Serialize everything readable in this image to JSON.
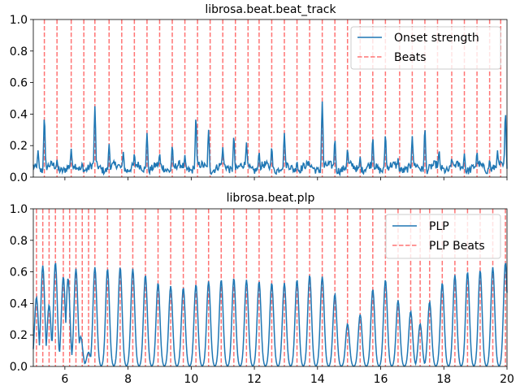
{
  "colors": {
    "signal": "#1f77b4",
    "beat": "#ff0000"
  },
  "chart_data": [
    {
      "type": "line",
      "title": "librosa.beat.beat_track",
      "xlim": [
        5,
        20
      ],
      "ylim": [
        0,
        1.0
      ],
      "yticks": [
        "0.0",
        "0.2",
        "0.4",
        "0.6",
        "0.8",
        "1.0"
      ],
      "xticks": [],
      "legend_position": "top-right",
      "series": [
        {
          "name": "Onset strength",
          "baseline": 0.06,
          "noise": 0.025,
          "peaks": [
            [
              5.15,
              0.17
            ],
            [
              5.35,
              0.38
            ],
            [
              5.75,
              0.11
            ],
            [
              6.2,
              0.18
            ],
            [
              6.55,
              0.09
            ],
            [
              6.95,
              0.45
            ],
            [
              7.4,
              0.21
            ],
            [
              7.85,
              0.16
            ],
            [
              8.2,
              0.15
            ],
            [
              8.6,
              0.28
            ],
            [
              9.0,
              0.15
            ],
            [
              9.4,
              0.2
            ],
            [
              9.8,
              0.14
            ],
            [
              10.15,
              0.38
            ],
            [
              10.55,
              0.3
            ],
            [
              11.0,
              0.19
            ],
            [
              11.35,
              0.26
            ],
            [
              11.75,
              0.22
            ],
            [
              12.15,
              0.16
            ],
            [
              12.55,
              0.19
            ],
            [
              12.95,
              0.28
            ],
            [
              13.35,
              0.1
            ],
            [
              13.75,
              0.08
            ],
            [
              14.15,
              0.48
            ],
            [
              14.55,
              0.24
            ],
            [
              14.95,
              0.18
            ],
            [
              15.35,
              0.13
            ],
            [
              15.75,
              0.25
            ],
            [
              16.15,
              0.27
            ],
            [
              16.55,
              0.12
            ],
            [
              17.0,
              0.26
            ],
            [
              17.4,
              0.31
            ],
            [
              17.85,
              0.17
            ],
            [
              18.25,
              0.12
            ],
            [
              18.65,
              0.15
            ],
            [
              19.05,
              0.16
            ],
            [
              19.45,
              0.11
            ],
            [
              19.7,
              0.17
            ],
            [
              19.95,
              0.41
            ]
          ]
        }
      ],
      "beat_legend": "Beats",
      "beats": [
        5.35,
        5.75,
        6.2,
        6.6,
        6.95,
        7.4,
        7.8,
        8.2,
        8.6,
        9.0,
        9.4,
        9.8,
        10.2,
        10.6,
        11.0,
        11.4,
        11.8,
        12.15,
        12.55,
        12.95,
        13.35,
        13.75,
        14.15,
        14.55,
        14.95,
        15.35,
        15.75,
        16.15,
        16.6,
        17.0,
        17.4,
        17.8,
        18.25,
        18.65,
        19.05,
        19.45,
        19.8
      ]
    },
    {
      "type": "line",
      "title": "librosa.beat.plp",
      "xlim": [
        5,
        20
      ],
      "ylim": [
        0,
        1.0
      ],
      "yticks": [
        "0.0",
        "0.2",
        "0.4",
        "0.6",
        "0.8",
        "1.0"
      ],
      "xticks": [
        "6",
        "8",
        "10",
        "12",
        "14",
        "16",
        "18",
        "20"
      ],
      "legend_position": "top-right",
      "series": [
        {
          "name": "PLP",
          "peaks": [
            [
              5.1,
              0.44
            ],
            [
              5.3,
              0.64
            ],
            [
              5.5,
              0.39
            ],
            [
              5.7,
              0.66
            ],
            [
              5.95,
              0.57
            ],
            [
              6.1,
              0.56
            ],
            [
              6.35,
              0.62
            ],
            [
              6.5,
              0.19
            ],
            [
              6.75,
              0.09
            ],
            [
              6.95,
              0.63
            ],
            [
              7.35,
              0.62
            ],
            [
              7.75,
              0.63
            ],
            [
              8.15,
              0.62
            ],
            [
              8.55,
              0.58
            ],
            [
              8.95,
              0.53
            ],
            [
              9.35,
              0.51
            ],
            [
              9.75,
              0.5
            ],
            [
              10.15,
              0.52
            ],
            [
              10.55,
              0.54
            ],
            [
              10.95,
              0.55
            ],
            [
              11.35,
              0.56
            ],
            [
              11.75,
              0.55
            ],
            [
              12.15,
              0.54
            ],
            [
              12.55,
              0.53
            ],
            [
              12.95,
              0.53
            ],
            [
              13.35,
              0.55
            ],
            [
              13.75,
              0.58
            ],
            [
              14.15,
              0.57
            ],
            [
              14.55,
              0.46
            ],
            [
              14.95,
              0.27
            ],
            [
              15.35,
              0.33
            ],
            [
              15.75,
              0.49
            ],
            [
              16.15,
              0.55
            ],
            [
              16.55,
              0.42
            ],
            [
              16.95,
              0.35
            ],
            [
              17.25,
              0.27
            ],
            [
              17.55,
              0.41
            ],
            [
              17.95,
              0.53
            ],
            [
              18.35,
              0.58
            ],
            [
              18.75,
              0.6
            ],
            [
              19.15,
              0.61
            ],
            [
              19.55,
              0.63
            ],
            [
              19.95,
              0.66
            ]
          ],
          "width": 0.085
        }
      ],
      "beat_legend": "PLP Beats",
      "beats": [
        5.1,
        5.3,
        5.5,
        5.7,
        5.95,
        6.15,
        6.35,
        6.55,
        6.75,
        6.95,
        7.35,
        7.75,
        8.15,
        8.55,
        8.95,
        9.35,
        9.75,
        10.15,
        10.55,
        10.95,
        11.35,
        11.75,
        12.15,
        12.55,
        12.95,
        13.35,
        13.75,
        14.15,
        14.55,
        14.95,
        15.35,
        15.75,
        16.15,
        16.55,
        16.95,
        17.25,
        17.55,
        17.95,
        18.35,
        18.75,
        19.15,
        19.55,
        19.95
      ]
    }
  ]
}
